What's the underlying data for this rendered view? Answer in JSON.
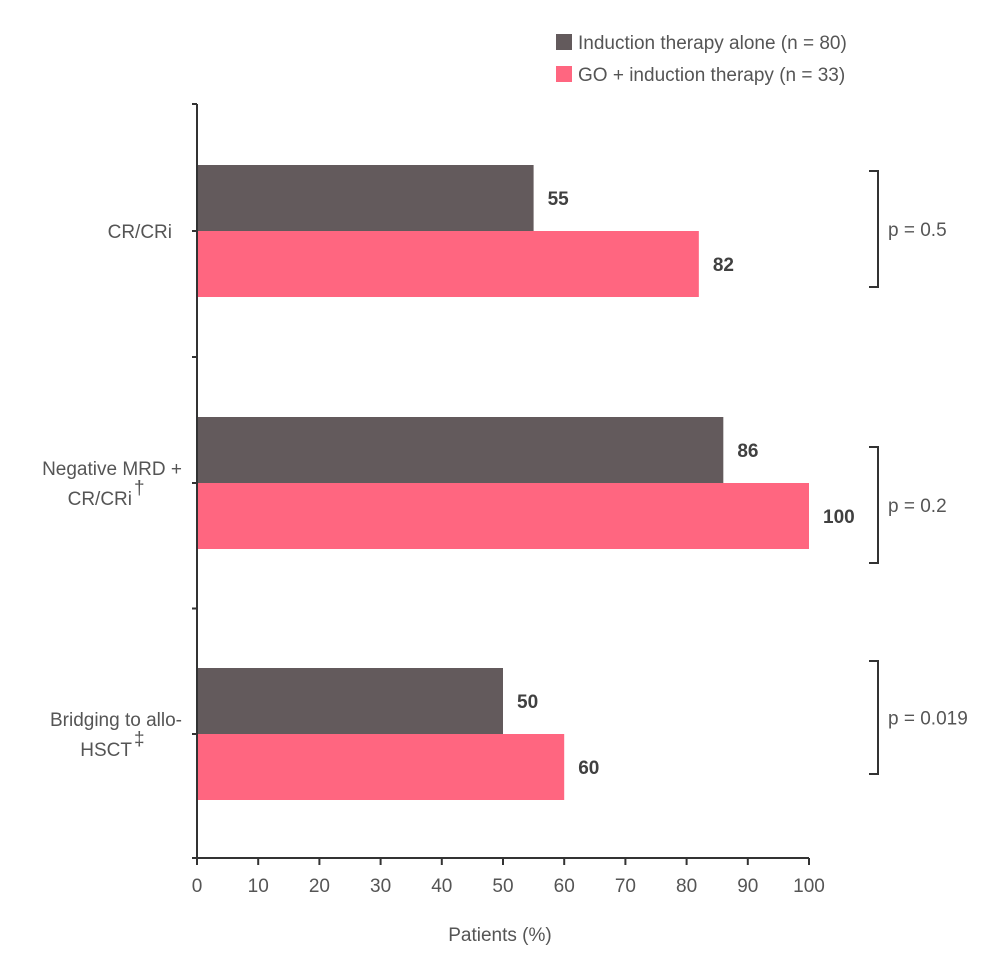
{
  "chart_data": {
    "type": "bar",
    "orientation": "horizontal",
    "categories": [
      {
        "label_line1": "CR/CRi",
        "label_line2": "",
        "superscript": ""
      },
      {
        "label_line1": "Negative MRD +",
        "label_line2": "CR/CRi",
        "superscript": "†"
      },
      {
        "label_line1": "Bridging to allo-",
        "label_line2": "HSCT",
        "superscript": "‡"
      }
    ],
    "series": [
      {
        "name": "Induction therapy alone (n = 80)",
        "color": "#635a5c",
        "values": [
          55,
          86,
          50
        ]
      },
      {
        "name": "GO + induction therapy (n = 33)",
        "color": "#ff6680",
        "values": [
          82,
          100,
          60
        ]
      }
    ],
    "p_values": [
      "p = 0.5",
      "p = 0.2",
      "p = 0.019"
    ],
    "xlabel": "Patients (%)",
    "xlim": [
      0,
      100
    ],
    "xticks": [
      "0",
      "10",
      "20",
      "30",
      "40",
      "50",
      "60",
      "70",
      "80",
      "90",
      "100"
    ],
    "legend_position": "top-right",
    "grid": false
  }
}
